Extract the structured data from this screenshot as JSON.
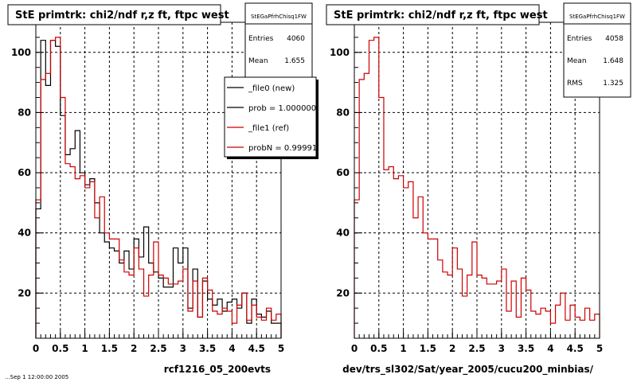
{
  "chart_data": [
    {
      "type": "histogram",
      "title": "StE primtrk: chi2/ndf r,z ft, ftpc west",
      "xlabel": "rcf1216_05_200evts",
      "xlim": [
        0,
        5
      ],
      "ylim": [
        5,
        110
      ],
      "xticks": [
        "0",
        "0.5",
        "1",
        "1.5",
        "2",
        "2.5",
        "3",
        "3.5",
        "4",
        "4.5",
        "5"
      ],
      "yticks": [
        "20",
        "40",
        "60",
        "80",
        "100"
      ],
      "grid": true,
      "bin_width": 0.1,
      "stats": {
        "name": "StEGaPfrhChisq1FW",
        "rows": [
          {
            "label": "Entries",
            "value": "4060"
          },
          {
            "label": "Mean",
            "value": "1.655"
          }
        ]
      },
      "legend": {
        "position": "top-right",
        "entries": [
          {
            "label": "_file0 (new)",
            "color": "#000000"
          },
          {
            "label": "prob = 1.000000",
            "color": "#000000"
          },
          {
            "label": "_file1 (ref)",
            "color": "#cc0000"
          },
          {
            "label": "probN = 0.999910",
            "color": "#cc0000"
          }
        ]
      },
      "series": [
        {
          "name": "_file0 (new)",
          "color": "#000000",
          "values": [
            48,
            104,
            89,
            104,
            102,
            79,
            66,
            68,
            74,
            60,
            56,
            58,
            50,
            40,
            37,
            35,
            34,
            30,
            34,
            28,
            38,
            32,
            42,
            30,
            27,
            25,
            22,
            22,
            35,
            30,
            35,
            15,
            28,
            12,
            24,
            18,
            16,
            18,
            14,
            17,
            18,
            15,
            20,
            10,
            18,
            13,
            12,
            14,
            10,
            10
          ]
        },
        {
          "name": "_file1 (ref)",
          "color": "#cc0000",
          "values": [
            51,
            91,
            93,
            104,
            105,
            85,
            63,
            62,
            58,
            59,
            55,
            57,
            45,
            52,
            40,
            38,
            38,
            31,
            27,
            26,
            35,
            28,
            19,
            26,
            37,
            26,
            25,
            23,
            23,
            24,
            28,
            14,
            24,
            12,
            25,
            21,
            14,
            13,
            15,
            14,
            10,
            16,
            20,
            11,
            16,
            12,
            11,
            15,
            11,
            13
          ]
        }
      ]
    },
    {
      "type": "histogram",
      "title": "StE primtrk: chi2/ndf r,z ft, ftpc west",
      "xlabel": "dev/trs_sl302/Sat/year_2005/cucu200_minbias/",
      "xlim": [
        0,
        5
      ],
      "ylim": [
        5,
        110
      ],
      "xticks": [
        "0",
        "0.5",
        "1",
        "1.5",
        "2",
        "2.5",
        "3",
        "3.5",
        "4",
        "4.5",
        "5"
      ],
      "yticks": [
        "20",
        "40",
        "60",
        "80",
        "100"
      ],
      "grid": true,
      "bin_width": 0.1,
      "stats": {
        "name": "StEGaPfrhChisq1FW",
        "rows": [
          {
            "label": "Entries",
            "value": "4058"
          },
          {
            "label": "Mean",
            "value": "1.648"
          },
          {
            "label": "RMS",
            "value": "1.325"
          }
        ]
      },
      "series": [
        {
          "name": "",
          "color": "#cc0000",
          "values": [
            51,
            91,
            93,
            104,
            105,
            85,
            61,
            62,
            58,
            59,
            55,
            57,
            45,
            52,
            40,
            38,
            38,
            31,
            27,
            26,
            35,
            28,
            19,
            26,
            37,
            26,
            25,
            23,
            23,
            24,
            28,
            14,
            24,
            12,
            25,
            21,
            14,
            13,
            15,
            14,
            10,
            16,
            20,
            11,
            16,
            12,
            11,
            15,
            11,
            13
          ]
        }
      ]
    }
  ],
  "footer": "...Sep 1 12:00:00 2005"
}
